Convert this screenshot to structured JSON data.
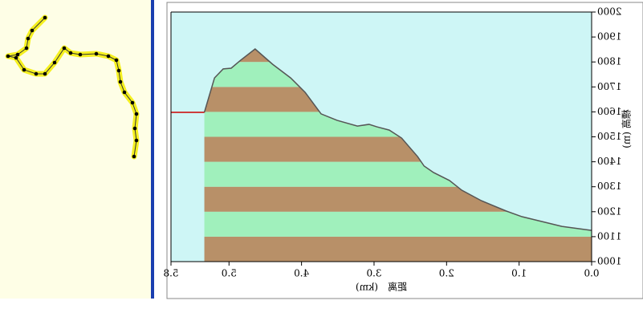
{
  "chart_data": {
    "type": "area",
    "x_label": "距离　(km)",
    "y_label": "標高 (m)",
    "x": [
      0,
      0.41,
      0.96,
      1.18,
      1.52,
      1.79,
      1.96,
      2.18,
      2.31,
      2.4,
      2.62,
      2.79,
      2.96,
      3.07,
      3.23,
      3.51,
      3.73,
      3.95,
      4.15,
      4.4,
      4.64,
      4.84,
      4.97,
      5.08,
      5.2,
      5.34
    ],
    "series": [
      {
        "color": "#555555",
        "values": [
          1125,
          1141,
          1180,
          1203,
          1244,
          1286,
          1325,
          1357,
          1383,
          1421,
          1495,
          1527,
          1540,
          1550,
          1543,
          1566,
          1592,
          1678,
          1736,
          1791,
          1852,
          1807,
          1775,
          1772,
          1736,
          1598
        ]
      },
      {
        "color": "#cc0000",
        "x": [
          5.34,
          5.8
        ],
        "values": [
          1598,
          1598
        ]
      }
    ],
    "band_colors": [
      "#b89068",
      "#a0f0bc"
    ],
    "background": "#cef6f6",
    "mirrored": true,
    "xlim": [
      0,
      5.8
    ],
    "xticks": [
      {
        "value": 0,
        "label": "0.0"
      },
      {
        "value": 1,
        "label": "1.0"
      },
      {
        "value": 2,
        "label": "2.0"
      },
      {
        "value": 3,
        "label": "3.0"
      },
      {
        "value": 4,
        "label": "4.0"
      },
      {
        "value": 5,
        "label": "5.0"
      },
      {
        "value": 5.8,
        "label": "5.8"
      }
    ],
    "ylim": [
      1000,
      2000
    ],
    "yticks": [
      1000,
      1100,
      1200,
      1300,
      1400,
      1500,
      1600,
      1700,
      1800,
      1900,
      2000
    ]
  }
}
